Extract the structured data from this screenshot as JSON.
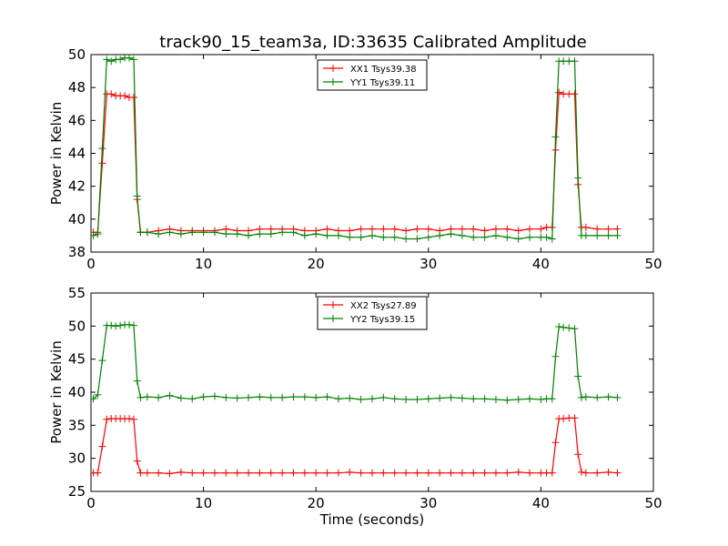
{
  "title": "track90_15_team3a, ID:33635 Calibrated Amplitude",
  "colors": {
    "red": "#ff0000",
    "green": "#008000"
  },
  "chart_data": [
    {
      "type": "line",
      "xlabel": "",
      "ylabel": "Power in Kelvin",
      "xlim": [
        0,
        50
      ],
      "ylim": [
        38,
        50
      ],
      "xticks": [
        0,
        10,
        20,
        30,
        40,
        50
      ],
      "yticks": [
        38,
        40,
        42,
        44,
        46,
        48,
        50
      ],
      "grid": false,
      "legend": "top-center",
      "series": [
        {
          "name": "XX1 Tsys39.38",
          "color": "#ff0000",
          "points": [
            [
              0.2,
              39.2
            ],
            [
              0.6,
              39.2
            ],
            [
              1.0,
              43.4
            ],
            [
              1.4,
              47.6
            ],
            [
              1.8,
              47.6
            ],
            [
              2.2,
              47.5
            ],
            [
              2.6,
              47.5
            ],
            [
              3.0,
              47.5
            ],
            [
              3.4,
              47.4
            ],
            [
              3.8,
              47.4
            ],
            [
              4.1,
              41.2
            ],
            [
              4.4,
              39.2
            ],
            [
              5.0,
              39.2
            ],
            [
              6.0,
              39.3
            ],
            [
              7.0,
              39.4
            ],
            [
              8.0,
              39.3
            ],
            [
              9.0,
              39.3
            ],
            [
              10.0,
              39.3
            ],
            [
              11.0,
              39.3
            ],
            [
              12.0,
              39.4
            ],
            [
              13.0,
              39.3
            ],
            [
              14.0,
              39.3
            ],
            [
              15.0,
              39.4
            ],
            [
              16.0,
              39.4
            ],
            [
              17.0,
              39.4
            ],
            [
              18.0,
              39.4
            ],
            [
              19.0,
              39.3
            ],
            [
              20.0,
              39.3
            ],
            [
              21.0,
              39.4
            ],
            [
              22.0,
              39.3
            ],
            [
              23.0,
              39.3
            ],
            [
              24.0,
              39.4
            ],
            [
              25.0,
              39.4
            ],
            [
              26.0,
              39.4
            ],
            [
              27.0,
              39.4
            ],
            [
              28.0,
              39.3
            ],
            [
              29.0,
              39.4
            ],
            [
              30.0,
              39.4
            ],
            [
              31.0,
              39.3
            ],
            [
              32.0,
              39.4
            ],
            [
              33.0,
              39.4
            ],
            [
              34.0,
              39.4
            ],
            [
              35.0,
              39.3
            ],
            [
              36.0,
              39.4
            ],
            [
              37.0,
              39.4
            ],
            [
              38.0,
              39.3
            ],
            [
              39.0,
              39.4
            ],
            [
              40.0,
              39.4
            ],
            [
              40.5,
              39.5
            ],
            [
              41.0,
              39.5
            ],
            [
              41.3,
              44.2
            ],
            [
              41.6,
              47.7
            ],
            [
              42.0,
              47.6
            ],
            [
              42.5,
              47.6
            ],
            [
              43.0,
              47.6
            ],
            [
              43.3,
              42.1
            ],
            [
              43.6,
              39.5
            ],
            [
              44.0,
              39.5
            ],
            [
              45.0,
              39.4
            ],
            [
              46.0,
              39.4
            ],
            [
              46.8,
              39.4
            ]
          ]
        },
        {
          "name": "YY1 Tsys39.11",
          "color": "#008000",
          "points": [
            [
              0.2,
              39.0
            ],
            [
              0.6,
              39.1
            ],
            [
              1.0,
              44.3
            ],
            [
              1.4,
              49.7
            ],
            [
              1.8,
              49.6
            ],
            [
              2.2,
              49.7
            ],
            [
              2.6,
              49.7
            ],
            [
              3.0,
              49.8
            ],
            [
              3.4,
              49.8
            ],
            [
              3.8,
              49.7
            ],
            [
              4.1,
              41.4
            ],
            [
              4.4,
              39.2
            ],
            [
              5.0,
              39.2
            ],
            [
              6.0,
              39.1
            ],
            [
              7.0,
              39.2
            ],
            [
              8.0,
              39.1
            ],
            [
              9.0,
              39.2
            ],
            [
              10.0,
              39.2
            ],
            [
              11.0,
              39.2
            ],
            [
              12.0,
              39.1
            ],
            [
              13.0,
              39.1
            ],
            [
              14.0,
              39.0
            ],
            [
              15.0,
              39.1
            ],
            [
              16.0,
              39.1
            ],
            [
              17.0,
              39.2
            ],
            [
              18.0,
              39.2
            ],
            [
              19.0,
              39.0
            ],
            [
              20.0,
              39.1
            ],
            [
              21.0,
              39.0
            ],
            [
              22.0,
              39.0
            ],
            [
              23.0,
              38.9
            ],
            [
              24.0,
              38.9
            ],
            [
              25.0,
              39.0
            ],
            [
              26.0,
              38.9
            ],
            [
              27.0,
              38.9
            ],
            [
              28.0,
              38.8
            ],
            [
              29.0,
              38.8
            ],
            [
              30.0,
              38.9
            ],
            [
              31.0,
              39.0
            ],
            [
              32.0,
              39.1
            ],
            [
              33.0,
              39.0
            ],
            [
              34.0,
              38.9
            ],
            [
              35.0,
              38.9
            ],
            [
              36.0,
              39.0
            ],
            [
              37.0,
              38.9
            ],
            [
              38.0,
              38.8
            ],
            [
              39.0,
              38.9
            ],
            [
              40.0,
              38.9
            ],
            [
              40.5,
              38.9
            ],
            [
              41.0,
              38.8
            ],
            [
              41.3,
              45.0
            ],
            [
              41.6,
              49.6
            ],
            [
              42.0,
              49.6
            ],
            [
              42.5,
              49.6
            ],
            [
              43.0,
              49.6
            ],
            [
              43.3,
              42.5
            ],
            [
              43.6,
              39.0
            ],
            [
              44.0,
              39.0
            ],
            [
              45.0,
              39.0
            ],
            [
              46.0,
              39.0
            ],
            [
              46.8,
              39.0
            ]
          ]
        }
      ]
    },
    {
      "type": "line",
      "xlabel": "Time (seconds)",
      "ylabel": "Power in Kelvin",
      "xlim": [
        0,
        50
      ],
      "ylim": [
        25,
        55
      ],
      "xticks": [
        0,
        10,
        20,
        30,
        40,
        50
      ],
      "yticks": [
        25,
        30,
        35,
        40,
        45,
        50,
        55
      ],
      "grid": false,
      "legend": "top-center",
      "series": [
        {
          "name": "XX2 Tsys27.89",
          "color": "#ff0000",
          "points": [
            [
              0.2,
              27.8
            ],
            [
              0.6,
              27.8
            ],
            [
              1.0,
              31.8
            ],
            [
              1.4,
              35.9
            ],
            [
              1.8,
              36.0
            ],
            [
              2.2,
              36.0
            ],
            [
              2.6,
              36.0
            ],
            [
              3.0,
              36.0
            ],
            [
              3.4,
              36.0
            ],
            [
              3.8,
              35.9
            ],
            [
              4.1,
              29.6
            ],
            [
              4.4,
              27.8
            ],
            [
              5.0,
              27.8
            ],
            [
              6.0,
              27.8
            ],
            [
              7.0,
              27.7
            ],
            [
              8.0,
              27.9
            ],
            [
              9.0,
              27.8
            ],
            [
              10.0,
              27.8
            ],
            [
              11.0,
              27.8
            ],
            [
              12.0,
              27.8
            ],
            [
              13.0,
              27.8
            ],
            [
              14.0,
              27.8
            ],
            [
              15.0,
              27.8
            ],
            [
              16.0,
              27.8
            ],
            [
              17.0,
              27.8
            ],
            [
              18.0,
              27.8
            ],
            [
              19.0,
              27.8
            ],
            [
              20.0,
              27.8
            ],
            [
              21.0,
              27.8
            ],
            [
              22.0,
              27.8
            ],
            [
              23.0,
              27.9
            ],
            [
              24.0,
              27.8
            ],
            [
              25.0,
              27.8
            ],
            [
              26.0,
              27.8
            ],
            [
              27.0,
              27.8
            ],
            [
              28.0,
              27.8
            ],
            [
              29.0,
              27.8
            ],
            [
              30.0,
              27.8
            ],
            [
              31.0,
              27.8
            ],
            [
              32.0,
              27.8
            ],
            [
              33.0,
              27.8
            ],
            [
              34.0,
              27.8
            ],
            [
              35.0,
              27.8
            ],
            [
              36.0,
              27.8
            ],
            [
              37.0,
              27.8
            ],
            [
              38.0,
              27.9
            ],
            [
              39.0,
              27.8
            ],
            [
              40.0,
              27.8
            ],
            [
              40.5,
              27.8
            ],
            [
              41.0,
              27.8
            ],
            [
              41.3,
              32.4
            ],
            [
              41.6,
              36.0
            ],
            [
              42.0,
              36.0
            ],
            [
              42.5,
              36.1
            ],
            [
              43.0,
              36.1
            ],
            [
              43.3,
              30.6
            ],
            [
              43.6,
              27.9
            ],
            [
              44.0,
              27.8
            ],
            [
              45.0,
              27.8
            ],
            [
              46.0,
              27.9
            ],
            [
              46.8,
              27.8
            ]
          ]
        },
        {
          "name": "YY2 Tsys39.15",
          "color": "#008000",
          "points": [
            [
              0.2,
              39.0
            ],
            [
              0.6,
              39.6
            ],
            [
              1.0,
              44.8
            ],
            [
              1.4,
              50.1
            ],
            [
              1.8,
              50.1
            ],
            [
              2.2,
              50.0
            ],
            [
              2.6,
              50.1
            ],
            [
              3.0,
              50.2
            ],
            [
              3.4,
              50.2
            ],
            [
              3.8,
              50.1
            ],
            [
              4.1,
              41.7
            ],
            [
              4.4,
              39.2
            ],
            [
              5.0,
              39.3
            ],
            [
              6.0,
              39.2
            ],
            [
              7.0,
              39.5
            ],
            [
              8.0,
              39.1
            ],
            [
              9.0,
              39.0
            ],
            [
              10.0,
              39.3
            ],
            [
              11.0,
              39.4
            ],
            [
              12.0,
              39.2
            ],
            [
              13.0,
              39.1
            ],
            [
              14.0,
              39.2
            ],
            [
              15.0,
              39.3
            ],
            [
              16.0,
              39.2
            ],
            [
              17.0,
              39.2
            ],
            [
              18.0,
              39.3
            ],
            [
              19.0,
              39.3
            ],
            [
              20.0,
              39.2
            ],
            [
              21.0,
              39.3
            ],
            [
              22.0,
              39.0
            ],
            [
              23.0,
              39.1
            ],
            [
              24.0,
              38.9
            ],
            [
              25.0,
              39.0
            ],
            [
              26.0,
              39.2
            ],
            [
              27.0,
              39.0
            ],
            [
              28.0,
              38.9
            ],
            [
              29.0,
              38.9
            ],
            [
              30.0,
              39.0
            ],
            [
              31.0,
              39.1
            ],
            [
              32.0,
              39.2
            ],
            [
              33.0,
              39.1
            ],
            [
              34.0,
              39.0
            ],
            [
              35.0,
              39.0
            ],
            [
              36.0,
              38.9
            ],
            [
              37.0,
              38.8
            ],
            [
              38.0,
              38.9
            ],
            [
              39.0,
              39.0
            ],
            [
              40.0,
              38.9
            ],
            [
              40.5,
              39.0
            ],
            [
              41.0,
              39.0
            ],
            [
              41.3,
              45.4
            ],
            [
              41.6,
              49.9
            ],
            [
              42.0,
              49.8
            ],
            [
              42.5,
              49.7
            ],
            [
              43.0,
              49.6
            ],
            [
              43.3,
              42.4
            ],
            [
              43.6,
              39.2
            ],
            [
              44.0,
              39.3
            ],
            [
              45.0,
              39.2
            ],
            [
              46.0,
              39.3
            ],
            [
              46.8,
              39.2
            ]
          ]
        }
      ]
    }
  ]
}
